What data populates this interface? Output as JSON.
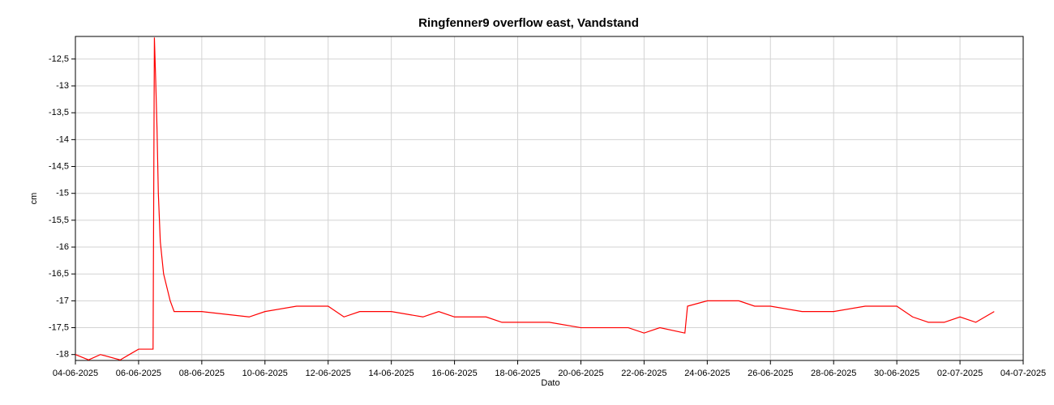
{
  "chart_data": {
    "type": "line",
    "title": "Ringfenner9 overflow east, Vandstand",
    "x_label": "Dato",
    "y_label": "cm",
    "x": [
      "2025-06-04T00:00",
      "2025-06-04T10:00",
      "2025-06-04T19:00",
      "2025-06-05T10:00",
      "2025-06-05T17:00",
      "2025-06-06T00:00",
      "2025-06-06T11:00",
      "2025-06-06T12:00",
      "2025-06-06T13:00",
      "2025-06-06T14:00",
      "2025-06-06T15:00",
      "2025-06-06T16:30",
      "2025-06-06T19:00",
      "2025-06-07T00:00",
      "2025-06-07T03:00",
      "2025-06-08T00:00",
      "2025-06-09T12:00",
      "2025-06-10T00:00",
      "2025-06-11T00:00",
      "2025-06-12T00:00",
      "2025-06-12T12:00",
      "2025-06-13T00:00",
      "2025-06-14T00:00",
      "2025-06-15T00:00",
      "2025-06-15T12:00",
      "2025-06-16T00:00",
      "2025-06-17T00:00",
      "2025-06-17T12:00",
      "2025-06-18T00:00",
      "2025-06-19T00:00",
      "2025-06-20T00:00",
      "2025-06-21T00:00",
      "2025-06-21T12:00",
      "2025-06-22T00:00",
      "2025-06-22T12:00",
      "2025-06-23T07:00",
      "2025-06-23T09:00",
      "2025-06-24T00:00",
      "2025-06-25T00:00",
      "2025-06-25T12:00",
      "2025-06-26T00:00",
      "2025-06-27T00:00",
      "2025-06-28T00:00",
      "2025-06-29T00:00",
      "2025-06-29T12:00",
      "2025-06-30T00:00",
      "2025-06-30T12:00",
      "2025-07-01T00:00",
      "2025-07-01T12:00",
      "2025-07-02T00:00",
      "2025-07-02T12:00",
      "2025-07-03T02:00"
    ],
    "series": [
      {
        "name": "Vandstand",
        "color": "#ff0000",
        "values": [
          -18.0,
          -18.1,
          -18.0,
          -18.1,
          -18.0,
          -17.9,
          -17.9,
          -12.1,
          -12.9,
          -13.8,
          -15.0,
          -15.9,
          -16.5,
          -17.0,
          -17.2,
          -17.2,
          -17.3,
          -17.2,
          -17.1,
          -17.1,
          -17.3,
          -17.2,
          -17.2,
          -17.3,
          -17.2,
          -17.3,
          -17.3,
          -17.4,
          -17.4,
          -17.4,
          -17.5,
          -17.5,
          -17.5,
          -17.6,
          -17.5,
          -17.6,
          -17.1,
          -17.0,
          -17.0,
          -17.1,
          -17.1,
          -17.2,
          -17.2,
          -17.1,
          -17.1,
          -17.1,
          -17.3,
          -17.4,
          -17.4,
          -17.3,
          -17.4,
          -17.2
        ]
      }
    ],
    "xlim": [
      "2025-06-04T00:00",
      "2025-07-04T00:00"
    ],
    "xticks": [
      {
        "value": "2025-06-04T00:00",
        "label": "04-06-2025"
      },
      {
        "value": "2025-06-06T00:00",
        "label": "06-06-2025"
      },
      {
        "value": "2025-06-08T00:00",
        "label": "08-06-2025"
      },
      {
        "value": "2025-06-10T00:00",
        "label": "10-06-2025"
      },
      {
        "value": "2025-06-12T00:00",
        "label": "12-06-2025"
      },
      {
        "value": "2025-06-14T00:00",
        "label": "14-06-2025"
      },
      {
        "value": "2025-06-16T00:00",
        "label": "16-06-2025"
      },
      {
        "value": "2025-06-18T00:00",
        "label": "18-06-2025"
      },
      {
        "value": "2025-06-20T00:00",
        "label": "20-06-2025"
      },
      {
        "value": "2025-06-22T00:00",
        "label": "22-06-2025"
      },
      {
        "value": "2025-06-24T00:00",
        "label": "24-06-2025"
      },
      {
        "value": "2025-06-26T00:00",
        "label": "26-06-2025"
      },
      {
        "value": "2025-06-28T00:00",
        "label": "28-06-2025"
      },
      {
        "value": "2025-06-30T00:00",
        "label": "30-06-2025"
      },
      {
        "value": "2025-07-02T00:00",
        "label": "02-07-2025"
      },
      {
        "value": "2025-07-04T00:00",
        "label": "04-07-2025"
      }
    ],
    "ylim": [
      -18.11,
      -12.08
    ],
    "yticks": [
      -18,
      {
        "value": -17.5,
        "label": "-17,5"
      },
      -17,
      {
        "value": -16.5,
        "label": "-16,5"
      },
      -16,
      {
        "value": -15.5,
        "label": "-15,5"
      },
      -15,
      {
        "value": -14.5,
        "label": "-14,5"
      },
      -14,
      {
        "value": -13.5,
        "label": "-13,5"
      },
      -13,
      {
        "value": -12.5,
        "label": "-12,5"
      }
    ],
    "grid": true
  }
}
